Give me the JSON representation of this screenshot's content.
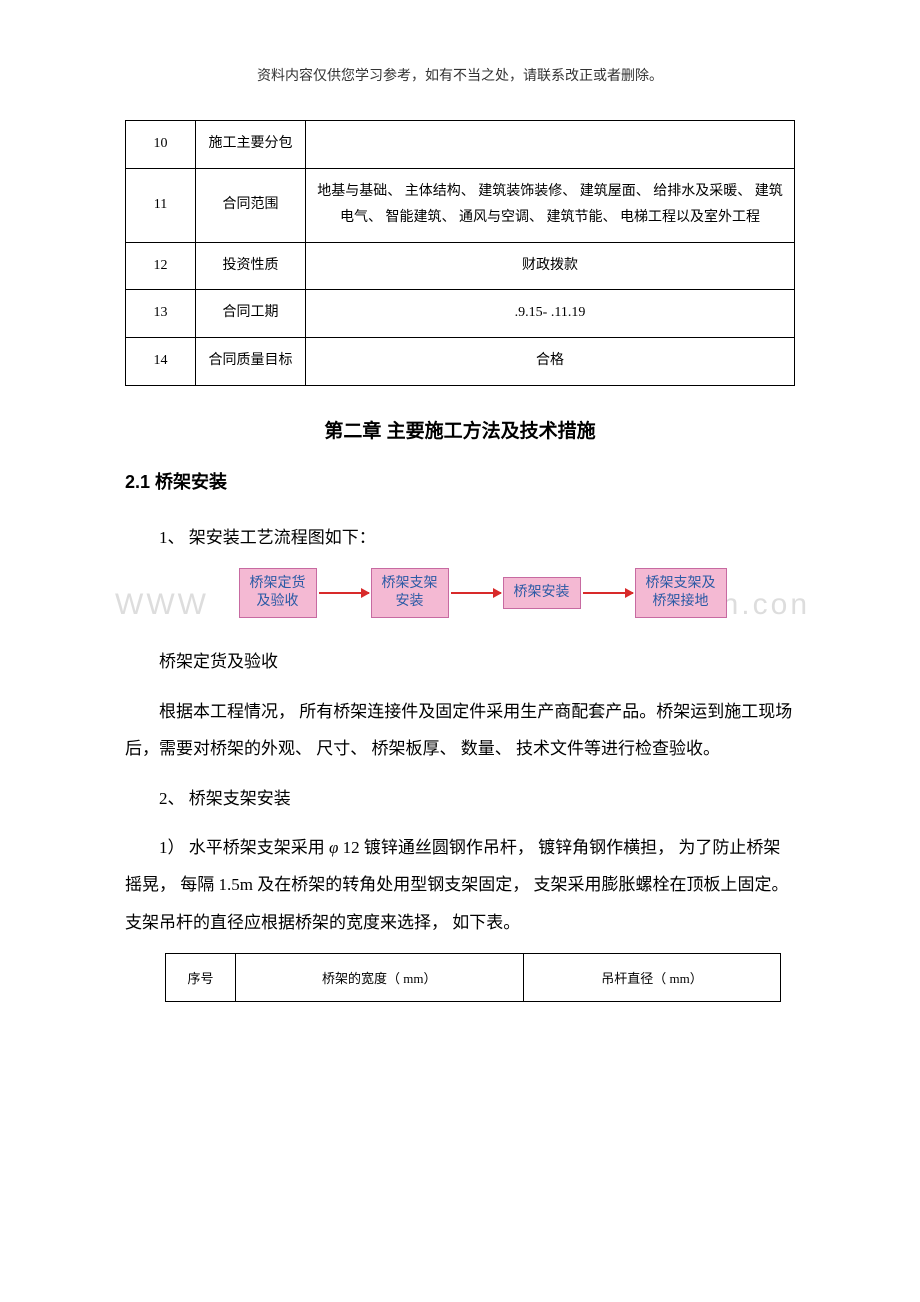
{
  "header_note": "资料内容仅供您学习参考，如有不当之处，请联系改正或者删除。",
  "table1": {
    "rows": [
      {
        "num": "10",
        "label": "施工主要分包",
        "value": ""
      },
      {
        "num": "11",
        "label": "合同范围",
        "value": "地基与基础、 主体结构、 建筑装饰装修、 建筑屋面、 给排水及采暖、 建筑电气、 智能建筑、 通风与空调、 建筑节能、 电梯工程以及室外工程"
      },
      {
        "num": "12",
        "label": "投资性质",
        "value": "财政拨款"
      },
      {
        "num": "13",
        "label": "合同工期",
        "value": ".9.15- .11.19"
      },
      {
        "num": "14",
        "label": "合同质量目标",
        "value": "合格"
      }
    ]
  },
  "section_title": "第二章  主要施工方法及技术措施",
  "sub_heading": "2.1 桥架安装",
  "para1": "1、 架安装工艺流程图如下：",
  "flowchart": {
    "boxes": [
      "桥架定货\n及验收",
      "桥架支架\n安装",
      "桥架安装",
      "桥架支架及\n桥架接地"
    ],
    "box_bg": "#f4b9d3",
    "box_border": "#c76aa1",
    "box_text_color": "#2b5aa5",
    "arrow_color": "#d82a2a"
  },
  "watermark_left": "WWW",
  "watermark_right": "n.con",
  "para2": "桥架定货及验收",
  "para3": "根据本工程情况， 所有桥架连接件及固定件采用生产商配套产品。桥架运到施工现场后，需要对桥架的外观、 尺寸、 桥架板厚、 数量、 技术文件等进行检查验收。",
  "para4": "2、 桥架支架安装",
  "para5_pre": "1） 水平桥架支架采用 ",
  "para5_phi": "φ",
  "para5_post": " 12 镀锌通丝圆钢作吊杆， 镀锌角钢作横担， 为了防止桥架摇晃， 每隔 1.5m 及在桥架的转角处用型钢支架固定， 支架采用膨胀螺栓在顶板上固定。 支架吊杆的直径应根据桥架的宽度来选择， 如下表。",
  "table2": {
    "headers": [
      "序号",
      "桥架的宽度（ mm）",
      "吊杆直径（ mm）"
    ]
  },
  "colors": {
    "text": "#000000",
    "watermark": "#dddddd",
    "background": "#ffffff"
  }
}
